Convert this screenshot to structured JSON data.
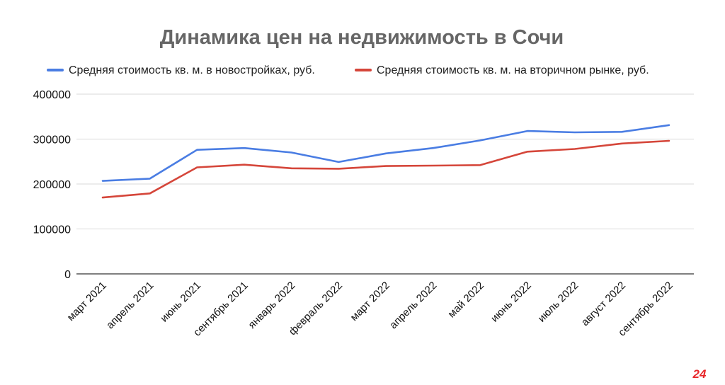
{
  "chart_data": {
    "type": "line",
    "title": "Динамика цен на недвижимость в Сочи",
    "xlabel": "",
    "ylabel": "",
    "categories": [
      "март 2021",
      "апрель 2021",
      "июнь 2021",
      "сентябрь 2021",
      "январь 2022",
      "февраль 2022",
      "март 2022",
      "апрель 2022",
      "май 2022",
      "июнь 2022",
      "июль 2022",
      "август 2022",
      "сентябрь 2022"
    ],
    "series": [
      {
        "name": "Средняя стоимость кв. м. в новостройках, руб.",
        "color": "#4a7de3",
        "values": [
          207000,
          212000,
          276000,
          280000,
          270000,
          249000,
          268000,
          280000,
          297000,
          318000,
          315000,
          316000,
          331000
        ]
      },
      {
        "name": "Средняя стоимость кв. м. на вторичном рынке, руб.",
        "color": "#d5463a",
        "values": [
          170000,
          179000,
          237000,
          243000,
          235000,
          234000,
          240000,
          241000,
          242000,
          272000,
          278000,
          290000,
          296000
        ]
      }
    ],
    "ylim": [
      0,
      400000
    ],
    "yticks": [
      "0",
      "100000",
      "200000",
      "300000",
      "400000"
    ],
    "grid": true,
    "legend_position": "top"
  },
  "logo": {
    "text": "24",
    "color": "#e8282b"
  }
}
